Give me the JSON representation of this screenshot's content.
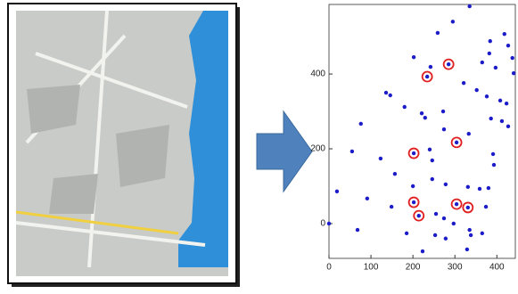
{
  "chart_data": {
    "type": "scatter",
    "xlim": [
      0,
      444
    ],
    "ylim": [
      -93,
      586
    ],
    "xticks": [
      0,
      100,
      200,
      300,
      400
    ],
    "yticks": [
      0,
      200,
      400
    ],
    "series": [
      {
        "color": "#1c1cc8",
        "marker": "dot",
        "x": [
          335,
          295,
          259,
          384,
          418,
          427,
          382,
          437,
          202,
          242,
          285,
          234,
          365,
          397,
          440,
          321,
          352,
          376,
          408,
          423,
          136,
          146,
          180,
          221,
          229,
          272,
          76,
          274,
          386,
          412,
          427,
          333,
          304,
          202,
          55,
          123,
          240,
          246,
          391,
          393,
          157,
          246,
          19,
          91,
          149,
          202,
          200,
          278,
          331,
          359,
          380,
          304,
          331,
          374,
          214,
          274,
          255,
          297,
          335,
          365,
          0,
          68,
          185,
          223,
          253,
          278,
          338,
          329
        ],
        "values": [
          581,
          540,
          510,
          488,
          507,
          476,
          455,
          443,
          445,
          419,
          426,
          393,
          431,
          417,
          402,
          376,
          357,
          340,
          329,
          321,
          350,
          343,
          312,
          295,
          283,
          300,
          267,
          252,
          281,
          274,
          260,
          240,
          217,
          188,
          193,
          174,
          198,
          169,
          186,
          157,
          133,
          119,
          86,
          67,
          45,
          57,
          100,
          105,
          98,
          93,
          95,
          52,
          43,
          45,
          21,
          14,
          26,
          0,
          -17,
          -26,
          0,
          -17,
          -26,
          -74,
          -31,
          -40,
          -31,
          -69
        ]
      },
      {
        "color": "#e02020",
        "marker": "ring",
        "x": [
          285,
          234,
          304,
          202,
          202,
          304,
          331,
          214
        ],
        "values": [
          426,
          393,
          217,
          188,
          57,
          52,
          43,
          21
        ]
      }
    ]
  }
}
